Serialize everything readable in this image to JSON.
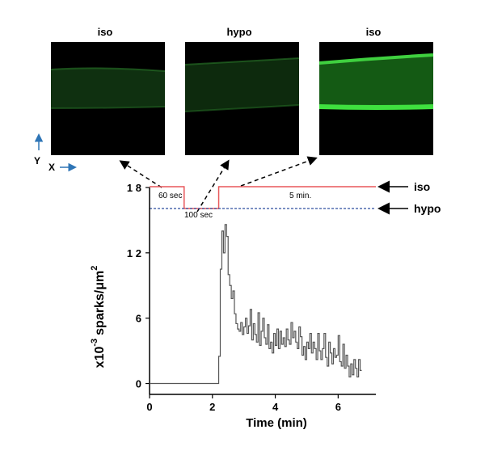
{
  "panels": [
    {
      "label": "iso",
      "brightness": "dim"
    },
    {
      "label": "hypo",
      "brightness": "dim"
    },
    {
      "label": "iso",
      "brightness": "bright"
    }
  ],
  "axis_indicator": {
    "y_label": "Y",
    "x_label": "X",
    "arrow_color": "#2e75b6"
  },
  "legend": {
    "iso_label": "iso",
    "hypo_label": "hypo"
  },
  "protocol": {
    "iso_color": "#e8575a",
    "hypo_color": "#2f4f9f",
    "annotations": [
      "60 sec",
      "100 sec",
      "5 min."
    ],
    "hypo_start_min": 1.1,
    "hypo_end_min": 2.2
  },
  "chart_data": {
    "type": "line",
    "xlabel": "Time (min)",
    "ylabel_main": "x10",
    "ylabel_exp": "-3",
    "ylabel_unit": "sparks/μm",
    "ylabel_unit_exp": "2",
    "xlim": [
      0,
      7.2
    ],
    "ylim": [
      -1,
      18
    ],
    "xticks": [
      0,
      2,
      4,
      6
    ],
    "yticks": [
      0,
      6,
      12,
      18
    ],
    "ytick_labels": [
      "0",
      "6",
      "1 2",
      "1 8"
    ],
    "series_color": "#555555",
    "x": [
      0,
      2.2,
      2.25,
      2.3,
      2.35,
      2.4,
      2.45,
      2.5,
      2.55,
      2.6,
      2.65,
      2.7,
      2.75,
      2.8,
      2.85,
      2.9,
      2.95,
      3.0,
      3.05,
      3.1,
      3.15,
      3.2,
      3.25,
      3.3,
      3.35,
      3.4,
      3.45,
      3.5,
      3.55,
      3.6,
      3.65,
      3.7,
      3.75,
      3.8,
      3.85,
      3.9,
      3.95,
      4.0,
      4.05,
      4.1,
      4.15,
      4.2,
      4.25,
      4.3,
      4.35,
      4.4,
      4.45,
      4.5,
      4.55,
      4.6,
      4.65,
      4.7,
      4.75,
      4.8,
      4.85,
      4.9,
      4.95,
      5.0,
      5.05,
      5.1,
      5.15,
      5.2,
      5.25,
      5.3,
      5.35,
      5.4,
      5.45,
      5.5,
      5.55,
      5.6,
      5.65,
      5.7,
      5.75,
      5.8,
      5.85,
      5.9,
      5.95,
      6.0,
      6.05,
      6.1,
      6.15,
      6.2,
      6.25,
      6.3,
      6.35,
      6.4,
      6.45,
      6.5,
      6.55,
      6.6,
      6.65,
      6.7
    ],
    "y": [
      0,
      2.5,
      10.5,
      14.0,
      12.0,
      14.6,
      13.5,
      10.0,
      9.0,
      7.8,
      8.5,
      6.4,
      5.5,
      5.0,
      4.8,
      5.6,
      4.5,
      5.2,
      6.0,
      4.6,
      5.3,
      6.8,
      4.0,
      5.5,
      4.5,
      3.8,
      6.5,
      3.5,
      4.8,
      6.0,
      4.2,
      3.6,
      5.4,
      3.2,
      3.8,
      2.8,
      4.6,
      3.5,
      5.0,
      3.2,
      4.8,
      3.6,
      4.2,
      3.4,
      5.0,
      4.0,
      3.6,
      5.6,
      4.2,
      4.8,
      3.8,
      3.2,
      5.2,
      4.3,
      2.6,
      3.4,
      2.2,
      3.8,
      3.2,
      4.6,
      2.8,
      3.8,
      3.2,
      2.2,
      4.6,
      3.0,
      2.2,
      3.2,
      4.6,
      2.4,
      1.6,
      3.8,
      2.8,
      1.8,
      3.2,
      2.4,
      2.6,
      4.4,
      2.0,
      1.6,
      3.6,
      1.4,
      2.6,
      1.6,
      0.6,
      1.8,
      0.8,
      2.2,
      1.4,
      0.6,
      2.2,
      1.2
    ]
  }
}
